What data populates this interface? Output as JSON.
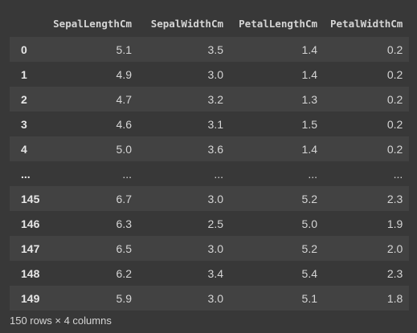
{
  "table": {
    "index_header": "",
    "columns": [
      "SepalLengthCm",
      "SepalWidthCm",
      "PetalLengthCm",
      "PetalWidthCm"
    ],
    "rows": [
      {
        "index": "0",
        "values": [
          "5.1",
          "3.5",
          "1.4",
          "0.2"
        ]
      },
      {
        "index": "1",
        "values": [
          "4.9",
          "3.0",
          "1.4",
          "0.2"
        ]
      },
      {
        "index": "2",
        "values": [
          "4.7",
          "3.2",
          "1.3",
          "0.2"
        ]
      },
      {
        "index": "3",
        "values": [
          "4.6",
          "3.1",
          "1.5",
          "0.2"
        ]
      },
      {
        "index": "4",
        "values": [
          "5.0",
          "3.6",
          "1.4",
          "0.2"
        ]
      },
      {
        "index": "...",
        "values": [
          "...",
          "...",
          "...",
          "..."
        ]
      },
      {
        "index": "145",
        "values": [
          "6.7",
          "3.0",
          "5.2",
          "2.3"
        ]
      },
      {
        "index": "146",
        "values": [
          "6.3",
          "2.5",
          "5.0",
          "1.9"
        ]
      },
      {
        "index": "147",
        "values": [
          "6.5",
          "3.0",
          "5.2",
          "2.0"
        ]
      },
      {
        "index": "148",
        "values": [
          "6.2",
          "3.4",
          "5.4",
          "2.3"
        ]
      },
      {
        "index": "149",
        "values": [
          "5.9",
          "3.0",
          "5.1",
          "1.8"
        ]
      }
    ]
  },
  "footer": {
    "shape_text": "150 rows × 4 columns"
  },
  "colors": {
    "background": "#383838",
    "row_stripe": "#424242",
    "text": "#d5d5d5"
  }
}
